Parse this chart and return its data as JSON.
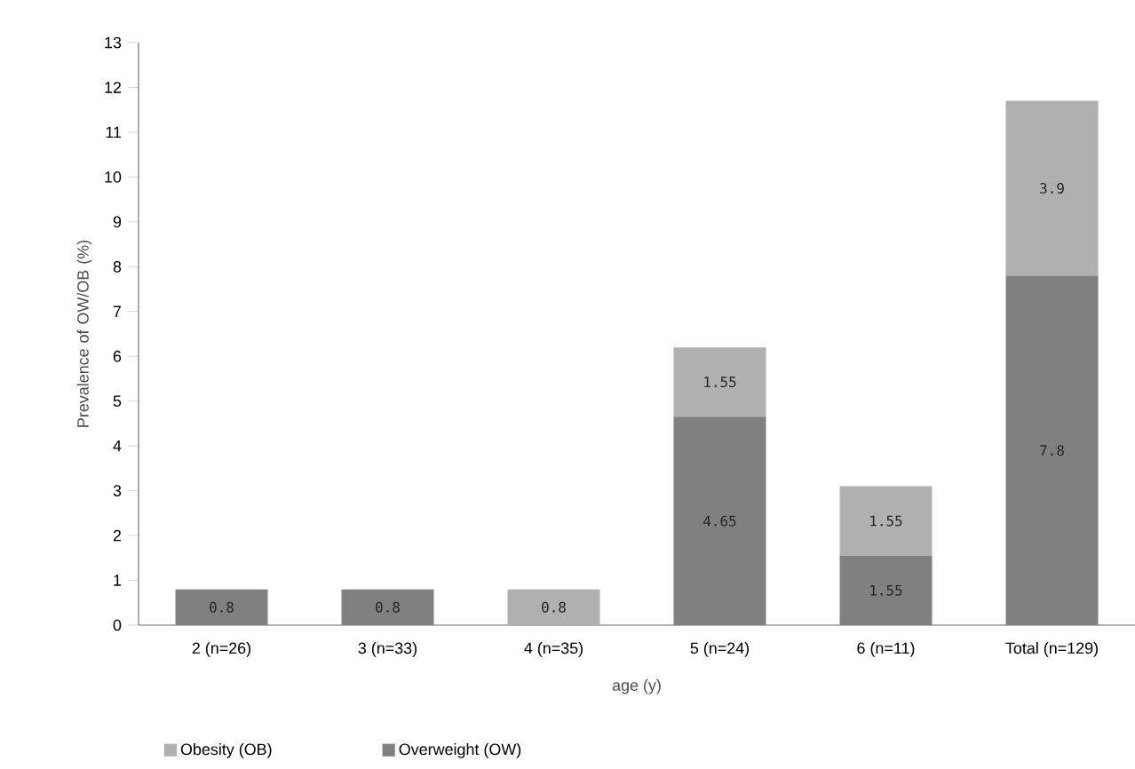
{
  "chart_data": {
    "type": "bar",
    "stacked": true,
    "xlabel": "age (y)",
    "ylabel": "Prevalence of OW/OB (%)",
    "categories": [
      "2 (n=26)",
      "3 (n=33)",
      "4 (n=35)",
      "5 (n=24)",
      "6 (n=11)",
      "Total (n=129)"
    ],
    "series": [
      {
        "name": "Overweight (OW)",
        "color": "#808080",
        "values": [
          0.8,
          0.8,
          null,
          4.65,
          1.55,
          7.8
        ],
        "value_labels": [
          "0.8",
          "0.8",
          null,
          "4.65",
          "1.55",
          "7.8"
        ]
      },
      {
        "name": "Obesity (OB)",
        "color": "#b0b0b0",
        "values": [
          null,
          null,
          0.8,
          1.55,
          1.55,
          3.9
        ],
        "value_labels": [
          null,
          null,
          "0.8",
          "1.55",
          "1.55",
          "3.9"
        ]
      }
    ],
    "ylim": [
      0,
      13
    ],
    "yticks": [
      0,
      1,
      2,
      3,
      4,
      5,
      6,
      7,
      8,
      9,
      10,
      11,
      12,
      13
    ],
    "grid": false,
    "legend": "bottom left"
  }
}
